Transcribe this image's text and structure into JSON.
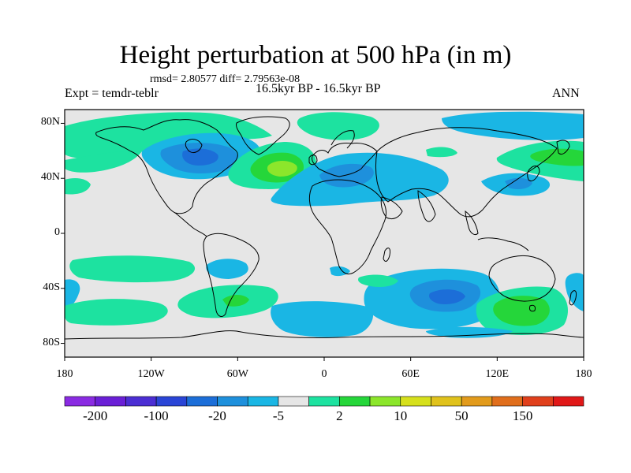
{
  "title": "Height perturbation at 500 hPa (in m)",
  "stats": "rmsd= 2.80577  diff= 2.79563e-08",
  "experiment": "Expt = temdr-teblr",
  "period": "16.5kyr BP - 16.5kyr BP",
  "season": "ANN",
  "lat_labels": [
    {
      "text": "80N",
      "lat": 80
    },
    {
      "text": "40N",
      "lat": 40
    },
    {
      "text": "0",
      "lat": 0
    },
    {
      "text": "40S",
      "lat": -40
    },
    {
      "text": "80S",
      "lat": -80
    }
  ],
  "lon_labels": [
    {
      "text": "180",
      "lon": -180
    },
    {
      "text": "120W",
      "lon": -120
    },
    {
      "text": "60W",
      "lon": -60
    },
    {
      "text": "0",
      "lon": 0
    },
    {
      "text": "60E",
      "lon": 60
    },
    {
      "text": "120E",
      "lon": 120
    },
    {
      "text": "180",
      "lon": 180
    }
  ],
  "colorbar": {
    "colors": [
      "#8a2be2",
      "#6a1fd6",
      "#4b2ed3",
      "#2a45d6",
      "#1c6ed8",
      "#1e90dc",
      "#1ab6e4",
      "#e6e6e6",
      "#1de2a0",
      "#25d63a",
      "#8ce62b",
      "#d6e01c",
      "#e0c21c",
      "#e29b1c",
      "#e06e1c",
      "#e0401c",
      "#e01818"
    ],
    "labels": [
      {
        "text": "-200",
        "boundary": 1
      },
      {
        "text": "-100",
        "boundary": 3
      },
      {
        "text": "-20",
        "boundary": 5
      },
      {
        "text": "-5",
        "boundary": 7
      },
      {
        "text": "2",
        "boundary": 9
      },
      {
        "text": "10",
        "boundary": 11
      },
      {
        "text": "50",
        "boundary": 13
      },
      {
        "text": "150",
        "boundary": 15
      }
    ]
  },
  "colors": {
    "background": "#e6e6e6",
    "light_blue": "#1ab6e4",
    "mid_blue": "#1e90dc",
    "dark_blue": "#1c6ed8",
    "teal_green": "#1de2a0",
    "green": "#25d63a",
    "yellow_green": "#8ce62b",
    "coast": "#000000"
  }
}
